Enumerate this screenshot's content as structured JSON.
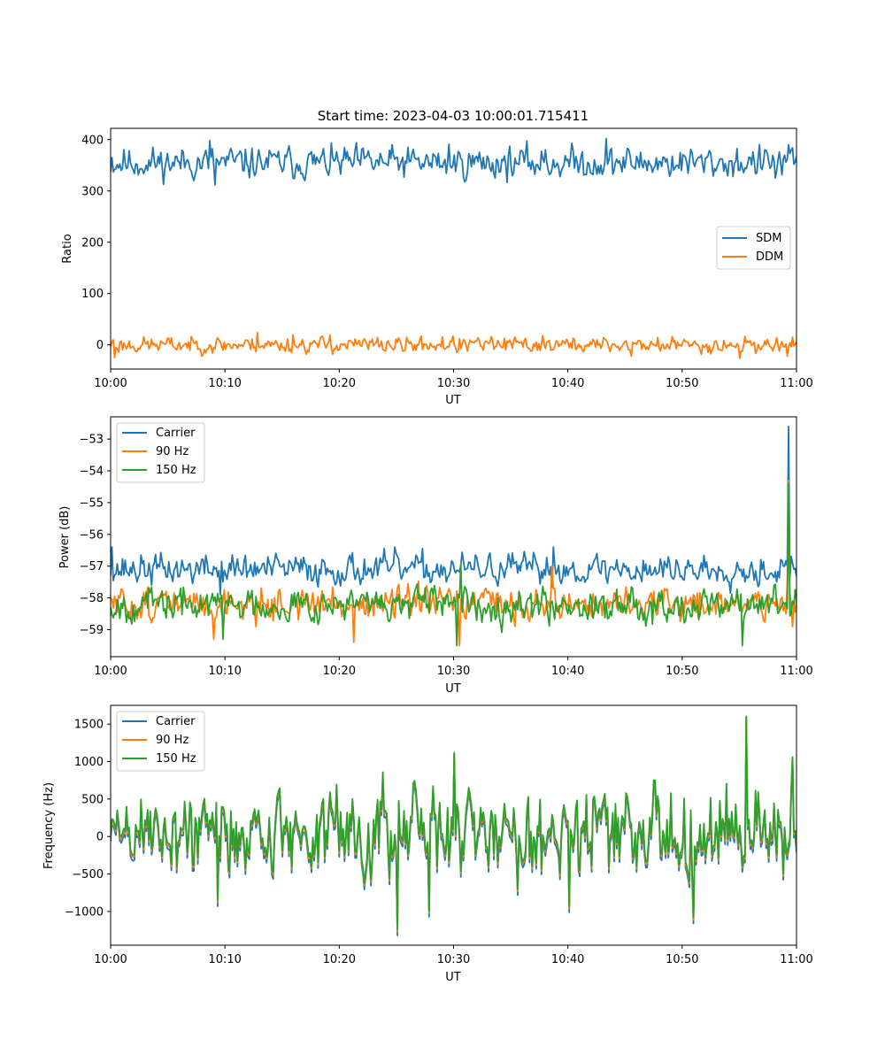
{
  "chart_data": [
    {
      "type": "line",
      "title": "Start time: 2023-04-03 10:00:01.715411",
      "xlabel": "UT",
      "ylabel": "Ratio",
      "xlim": [
        "10:00",
        "11:00"
      ],
      "xticks": [
        "10:00",
        "10:10",
        "10:20",
        "10:30",
        "10:40",
        "10:50",
        "11:00"
      ],
      "ylim": [
        -47,
        422
      ],
      "yticks": [
        0,
        100,
        200,
        300,
        400
      ],
      "legend_position": "center-right",
      "series": [
        {
          "name": "SDM",
          "color": "#1f77b4",
          "mean": 355,
          "amplitude": 18,
          "seed": 11,
          "x_minutes": [
            0.1,
            3.2,
            8.7,
            9.1,
            14.3,
            21.0,
            29.6,
            38.0,
            43.4,
            46.1,
            58.2,
            59.8
          ],
          "values": [
            365,
            340,
            398,
            312,
            372,
            355,
            391,
            380,
            402,
            360,
            325,
            352
          ]
        },
        {
          "name": "DDM",
          "color": "#ff7f0e",
          "mean": 0,
          "amplitude": 9,
          "seed": 23,
          "x_minutes": [
            0.2,
            0.4,
            12.8,
            16.0,
            19.2,
            25.5,
            29.0,
            37.8,
            45.6,
            55.0,
            59.2,
            59.7
          ],
          "values": [
            10,
            -25,
            24,
            20,
            19,
            -12,
            16,
            18,
            -22,
            -26,
            -22,
            15
          ]
        }
      ]
    },
    {
      "type": "line",
      "title": "",
      "xlabel": "UT",
      "ylabel": "Power (dB)",
      "xlim": [
        "10:00",
        "11:00"
      ],
      "xticks": [
        "10:00",
        "10:10",
        "10:20",
        "10:30",
        "10:40",
        "10:50",
        "11:00"
      ],
      "ylim": [
        -59.85,
        -52.3
      ],
      "yticks": [
        -59,
        -58,
        -57,
        -56,
        -55,
        -54,
        -53
      ],
      "legend_position": "upper-left",
      "series": [
        {
          "name": "Carrier",
          "color": "#1f77b4",
          "mean": -57.1,
          "amplitude": 0.28,
          "seed": 37,
          "x_minutes": [
            0.1,
            9.6,
            24.8,
            38.7,
            59.0,
            59.3,
            59.6,
            59.8
          ],
          "values": [
            -56.4,
            -57.9,
            -56.4,
            -56.4,
            -57.0,
            -52.6,
            -56.9,
            -57.1
          ]
        },
        {
          "name": "90 Hz",
          "color": "#ff7f0e",
          "mean": -58.2,
          "amplitude": 0.3,
          "seed": 51,
          "x_minutes": [
            9.0,
            21.3,
            30.5,
            38.6,
            59.1,
            59.3,
            59.6,
            59.8
          ],
          "values": [
            -59.3,
            -59.4,
            -59.5,
            -57.0,
            -58.5,
            -54.3,
            -58.9,
            -58.2
          ]
        },
        {
          "name": "150 Hz",
          "color": "#2ca02c",
          "mean": -58.2,
          "amplitude": 0.3,
          "seed": 67,
          "x_minutes": [
            9.8,
            30.3,
            30.6,
            55.3,
            59.0,
            59.3,
            59.6,
            59.8
          ],
          "values": [
            -59.3,
            -59.5,
            -56.9,
            -59.5,
            -58.2,
            -54.4,
            -58.1,
            -58.2
          ]
        }
      ]
    },
    {
      "type": "line",
      "title": "",
      "xlabel": "UT",
      "ylabel": "Frequency (Hz)",
      "xlim": [
        "10:00",
        "11:00"
      ],
      "xticks": [
        "10:00",
        "10:10",
        "10:20",
        "10:30",
        "10:40",
        "10:50",
        "11:00"
      ],
      "ylim": [
        -1450,
        1750
      ],
      "yticks": [
        -1000,
        -500,
        0,
        500,
        1000,
        1500
      ],
      "legend_position": "upper-left",
      "series": [
        {
          "name": "Carrier",
          "color": "#1f77b4",
          "mean": 0,
          "amplitude": 330,
          "seed": 89,
          "x_minutes": [
            9.4,
            25.1,
            27.9,
            30.1,
            40.1,
            51.0,
            55.6,
            59.6
          ],
          "values": [
            -930,
            -1320,
            -1070,
            1100,
            -1010,
            -1160,
            1590,
            1040
          ]
        },
        {
          "name": "90 Hz",
          "color": "#ff7f0e",
          "mean": 50,
          "amplitude": 330,
          "seed": 89,
          "x_minutes": [
            9.4,
            25.1,
            27.9,
            30.1,
            40.1,
            51.0,
            55.6,
            59.6
          ],
          "values": [
            -880,
            -1270,
            -1020,
            1110,
            -960,
            -1110,
            1600,
            1050
          ]
        },
        {
          "name": "150 Hz",
          "color": "#2ca02c",
          "mean": 80,
          "amplitude": 330,
          "seed": 89,
          "x_minutes": [
            9.4,
            25.1,
            27.9,
            30.1,
            40.1,
            51.0,
            55.6,
            59.6
          ],
          "values": [
            -850,
            -1240,
            -990,
            1120,
            -930,
            -1080,
            1600,
            1060
          ]
        }
      ]
    }
  ]
}
